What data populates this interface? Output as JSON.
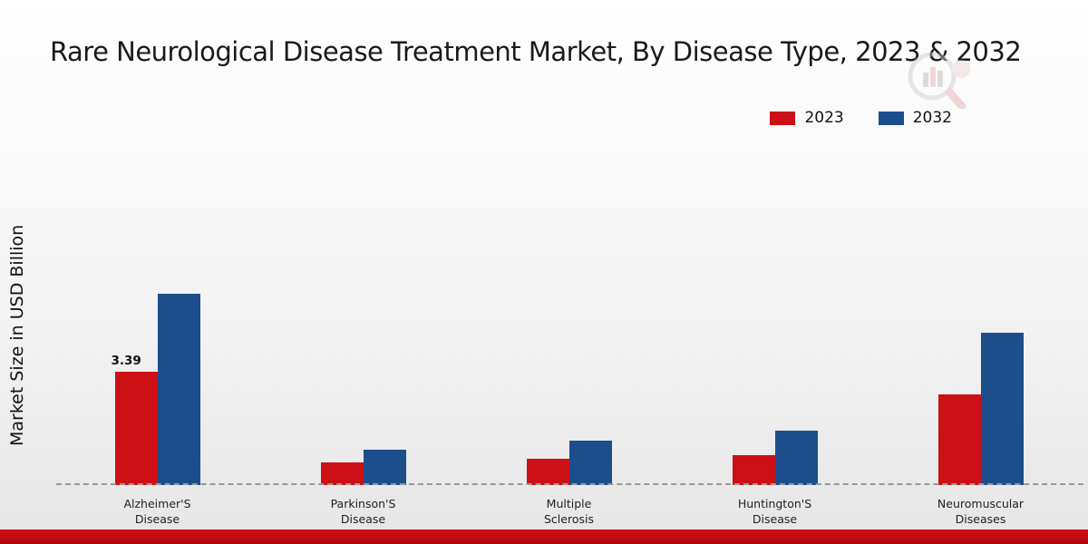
{
  "chart_data": {
    "type": "bar",
    "title": "Rare Neurological Disease Treatment Market, By Disease Type, 2023 & 2032",
    "xlabel": "",
    "ylabel": "Market Size in USD Billion",
    "categories": [
      "Alzheimer'S Disease",
      "Parkinson'S Disease",
      "Multiple Sclerosis",
      "Huntington'S Disease",
      "Neuromuscular Diseases"
    ],
    "category_label_lines": [
      "Alzheimer'S\nDisease",
      "Parkinson'S\nDisease",
      "Multiple\nSclerosis",
      "Huntington'S\nDisease",
      "Neuromuscular\nDiseases"
    ],
    "series": [
      {
        "name": "2023",
        "color": "#cc1016",
        "values": [
          3.39,
          0.68,
          0.78,
          0.9,
          2.7
        ]
      },
      {
        "name": "2032",
        "color": "#1c4e8e",
        "values": [
          5.7,
          1.05,
          1.33,
          1.62,
          4.55
        ]
      }
    ],
    "data_labels": [
      {
        "series": "2023",
        "category": "Alzheimer'S Disease",
        "text": "3.39"
      }
    ],
    "ylim": [
      0,
      6
    ],
    "grid": false,
    "legend_position": "top-right",
    "baseline_style": "dashed"
  },
  "colors": {
    "series_2023": "#cc1016",
    "series_2032": "#1c4e8e",
    "bottom_strip": "#c00a0f",
    "title_text": "#1a1a1a",
    "baseline": "#999999"
  }
}
